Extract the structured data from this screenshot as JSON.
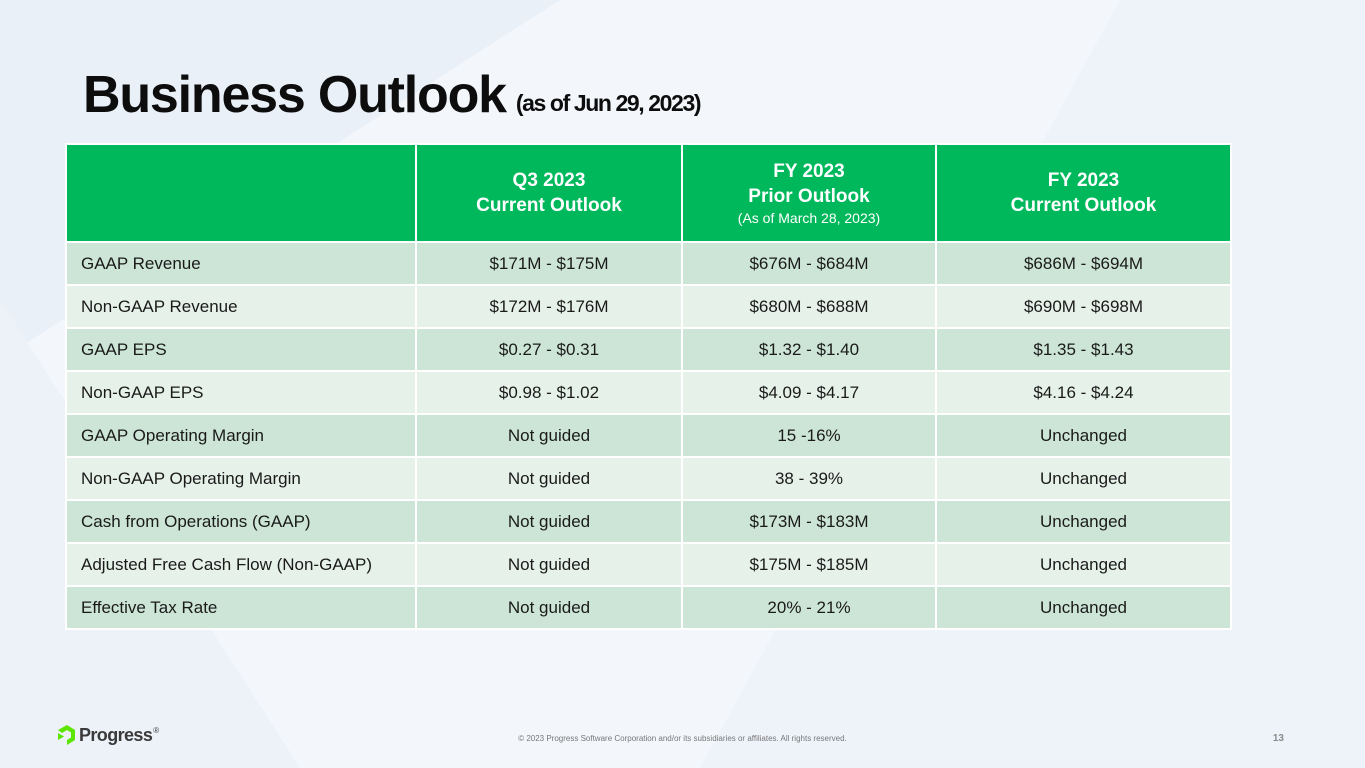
{
  "title": {
    "main": "Business Outlook",
    "sub": "(as of Jun 29, 2023)"
  },
  "table": {
    "headers": [
      {
        "line1": "",
        "line2": "",
        "note": ""
      },
      {
        "line1": "Q3 2023",
        "line2": "Current Outlook",
        "note": ""
      },
      {
        "line1": "FY 2023",
        "line2": "Prior Outlook",
        "note": "(As of March 28, 2023)"
      },
      {
        "line1": "FY 2023",
        "line2": "Current Outlook",
        "note": ""
      }
    ],
    "rows": [
      {
        "metric": "GAAP Revenue",
        "q3_current": "$171M - $175M",
        "fy_prior": "$676M - $684M",
        "fy_current": "$686M - $694M"
      },
      {
        "metric": "Non-GAAP Revenue",
        "q3_current": "$172M - $176M",
        "fy_prior": "$680M - $688M",
        "fy_current": "$690M - $698M"
      },
      {
        "metric": "GAAP EPS",
        "q3_current": "$0.27 - $0.31",
        "fy_prior": "$1.32 - $1.40",
        "fy_current": "$1.35 - $1.43"
      },
      {
        "metric": "Non-GAAP EPS",
        "q3_current": "$0.98 - $1.02",
        "fy_prior": "$4.09 - $4.17",
        "fy_current": "$4.16 - $4.24"
      },
      {
        "metric": "GAAP Operating Margin",
        "q3_current": "Not guided",
        "fy_prior": "15 -16%",
        "fy_current": "Unchanged"
      },
      {
        "metric": "Non-GAAP Operating Margin",
        "q3_current": "Not guided",
        "fy_prior": "38 - 39%",
        "fy_current": "Unchanged"
      },
      {
        "metric": "Cash from Operations (GAAP)",
        "q3_current": "Not guided",
        "fy_prior": "$173M - $183M",
        "fy_current": "Unchanged"
      },
      {
        "metric": "Adjusted Free Cash Flow (Non-GAAP)",
        "q3_current": "Not guided",
        "fy_prior": "$175M - $185M",
        "fy_current": "Unchanged"
      },
      {
        "metric": "Effective Tax Rate",
        "q3_current": "Not guided",
        "fy_prior": "20% - 21%",
        "fy_current": "Unchanged"
      }
    ]
  },
  "footer": {
    "logo_text": "Progress",
    "logo_icon": "progress-logo-icon",
    "copyright": "© 2023 Progress Software Corporation and/or its subsidiaries or affiliates. All rights reserved.",
    "page_number": "13"
  },
  "colors": {
    "header_green": "#00b85c",
    "row_dark": "#cce5d6",
    "row_light": "#e6f1ea",
    "logo_green": "#5ce500"
  }
}
